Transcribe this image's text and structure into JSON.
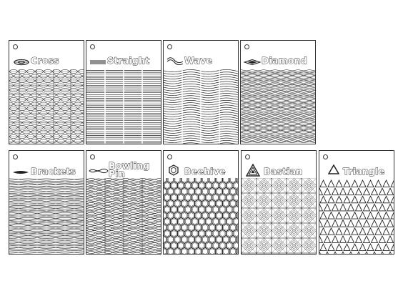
{
  "colors": {
    "line": "#222222",
    "background": "#ffffff"
  },
  "cards": [
    {
      "name": "Cross",
      "label": "Cross",
      "icon": "cross-icon",
      "pattern": "cross"
    },
    {
      "name": "Straight",
      "label": "Straight",
      "icon": "straight-icon",
      "pattern": "straight"
    },
    {
      "name": "Wave",
      "label": "Wave",
      "icon": "wave-icon",
      "pattern": "wave"
    },
    {
      "name": "Diamond",
      "label": "Diamond",
      "icon": "diamond-icon",
      "pattern": "diamond"
    },
    {
      "name": "Brackets",
      "label": "Brackets",
      "icon": "brackets-icon",
      "pattern": "brackets"
    },
    {
      "name": "Bowling Pin",
      "label": "Bowling\nPin",
      "icon": "bowling-pin-icon",
      "pattern": "bowling"
    },
    {
      "name": "Beehive",
      "label": "Beehive",
      "icon": "hexagon-icon",
      "pattern": "beehive"
    },
    {
      "name": "Bastian",
      "label": "Bastian",
      "icon": "bastian-triangle-icon",
      "pattern": "bastian"
    },
    {
      "name": "Triangle",
      "label": "Triangle",
      "icon": "triangle-icon",
      "pattern": "triangle"
    }
  ]
}
